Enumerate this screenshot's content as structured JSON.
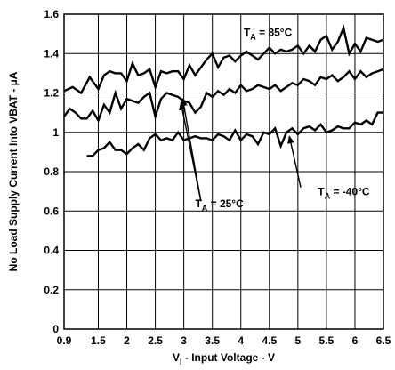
{
  "chart_data": {
    "type": "line",
    "title": "",
    "xlabel": {
      "pre": "V",
      "sub": "I",
      "post": " - Input Voltage - V"
    },
    "ylabel": "No Load Supply Current Into VBAT - µA",
    "xlim": [
      0.9,
      6.5
    ],
    "ylim": [
      0,
      1.6
    ],
    "xticks": [
      "0.9",
      "1.5",
      "2",
      "2.5",
      "3",
      "3.5",
      "4",
      "4.5",
      "5",
      "5.5",
      "6",
      "6.5"
    ],
    "yticks": [
      "0",
      "0.2",
      "0.4",
      "0.6",
      "0.8",
      "1",
      "1.2",
      "1.4",
      "1.6"
    ],
    "grid": true,
    "legend": "none",
    "series": [
      {
        "name": "TA = 85°C",
        "label": {
          "pre": "T",
          "sub": "A",
          "post": " = 85°C"
        },
        "x": [
          0.9,
          1.05,
          1.2,
          1.35,
          1.5,
          1.6,
          1.7,
          1.8,
          1.9,
          2.0,
          2.1,
          2.2,
          2.3,
          2.4,
          2.5,
          2.6,
          2.7,
          2.8,
          2.9,
          3.0,
          3.1,
          3.2,
          3.3,
          3.4,
          3.5,
          3.6,
          3.7,
          3.8,
          3.9,
          4.0,
          4.1,
          4.2,
          4.3,
          4.4,
          4.5,
          4.6,
          4.7,
          4.8,
          4.9,
          5.0,
          5.1,
          5.2,
          5.3,
          5.4,
          5.5,
          5.6,
          5.7,
          5.8,
          5.9,
          6.0,
          6.1,
          6.2,
          6.3,
          6.4,
          6.5
        ],
        "y": [
          1.21,
          1.23,
          1.2,
          1.28,
          1.22,
          1.29,
          1.31,
          1.3,
          1.3,
          1.26,
          1.35,
          1.29,
          1.3,
          1.32,
          1.23,
          1.31,
          1.3,
          1.31,
          1.31,
          1.27,
          1.34,
          1.29,
          1.33,
          1.37,
          1.4,
          1.33,
          1.38,
          1.39,
          1.36,
          1.39,
          1.41,
          1.39,
          1.37,
          1.4,
          1.43,
          1.4,
          1.42,
          1.41,
          1.42,
          1.44,
          1.4,
          1.44,
          1.41,
          1.47,
          1.49,
          1.42,
          1.46,
          1.53,
          1.4,
          1.45,
          1.41,
          1.48,
          1.47,
          1.46,
          1.47
        ]
      },
      {
        "name": "TA = 25°C",
        "label": {
          "pre": "T",
          "sub": "A",
          "post": " = 25°C"
        },
        "x": [
          0.9,
          1.0,
          1.1,
          1.2,
          1.3,
          1.4,
          1.5,
          1.6,
          1.7,
          1.8,
          1.9,
          2.0,
          2.1,
          2.2,
          2.3,
          2.4,
          2.5,
          2.6,
          2.7,
          2.8,
          2.9,
          3.0,
          3.1,
          3.2,
          3.3,
          3.4,
          3.5,
          3.6,
          3.7,
          3.8,
          3.9,
          4.0,
          4.1,
          4.2,
          4.3,
          4.4,
          4.5,
          4.6,
          4.7,
          4.8,
          4.9,
          5.0,
          5.1,
          5.2,
          5.3,
          5.4,
          5.5,
          5.6,
          5.7,
          5.8,
          5.9,
          6.0,
          6.1,
          6.2,
          6.3,
          6.4,
          6.5
        ],
        "y": [
          1.08,
          1.12,
          1.1,
          1.07,
          1.07,
          1.11,
          1.06,
          1.14,
          1.1,
          1.2,
          1.12,
          1.17,
          1.16,
          1.15,
          1.18,
          1.2,
          1.08,
          1.17,
          1.2,
          1.19,
          1.18,
          1.16,
          1.15,
          1.1,
          1.13,
          1.2,
          1.18,
          1.21,
          1.19,
          1.22,
          1.2,
          1.24,
          1.21,
          1.22,
          1.24,
          1.23,
          1.22,
          1.24,
          1.21,
          1.23,
          1.25,
          1.24,
          1.27,
          1.26,
          1.24,
          1.28,
          1.27,
          1.29,
          1.26,
          1.28,
          1.31,
          1.27,
          1.31,
          1.28,
          1.3,
          1.31,
          1.32
        ]
      },
      {
        "name": "TA = -40°C",
        "label": {
          "pre": "T",
          "sub": "A",
          "post": " = -40°C"
        },
        "x": [
          1.3,
          1.4,
          1.5,
          1.6,
          1.7,
          1.8,
          1.9,
          2.0,
          2.1,
          2.2,
          2.3,
          2.4,
          2.5,
          2.6,
          2.7,
          2.8,
          2.9,
          3.0,
          3.1,
          3.2,
          3.3,
          3.4,
          3.5,
          3.6,
          3.7,
          3.8,
          3.9,
          4.0,
          4.1,
          4.2,
          4.3,
          4.4,
          4.5,
          4.6,
          4.7,
          4.8,
          4.9,
          5.0,
          5.1,
          5.2,
          5.3,
          5.4,
          5.5,
          5.6,
          5.7,
          5.8,
          5.9,
          6.0,
          6.1,
          6.2,
          6.3,
          6.4,
          6.5
        ],
        "y": [
          0.88,
          0.88,
          0.91,
          0.92,
          0.95,
          0.91,
          0.91,
          0.89,
          0.92,
          0.94,
          0.91,
          0.97,
          0.99,
          0.96,
          0.97,
          0.96,
          1.0,
          0.96,
          0.97,
          0.98,
          0.97,
          0.97,
          0.96,
          0.99,
          0.98,
          0.96,
          1.01,
          0.96,
          0.99,
          0.98,
          0.94,
          1.0,
          0.99,
          1.02,
          0.93,
          1.0,
          1.02,
          0.99,
          1.02,
          1.03,
          1.01,
          1.04,
          1.0,
          1.01,
          1.03,
          1.02,
          1.02,
          1.05,
          1.04,
          1.06,
          1.04,
          1.1,
          1.1
        ]
      }
    ],
    "annotations": [
      {
        "series": 0,
        "text_at": [
          4.05,
          1.49
        ],
        "arrow": null
      },
      {
        "series": 1,
        "text_at": [
          3.2,
          0.62
        ],
        "arrow": {
          "from": [
            3.3,
            0.65
          ],
          "to": [
            2.95,
            1.15
          ]
        }
      },
      {
        "series": 1,
        "text_at": null,
        "arrow": {
          "from": [
            3.3,
            0.65
          ],
          "to": [
            2.98,
            1.17
          ]
        }
      },
      {
        "series": 2,
        "text_at": [
          5.35,
          0.68
        ],
        "arrow": {
          "from": [
            5.05,
            0.72
          ],
          "to": [
            4.85,
            0.98
          ]
        }
      }
    ]
  }
}
